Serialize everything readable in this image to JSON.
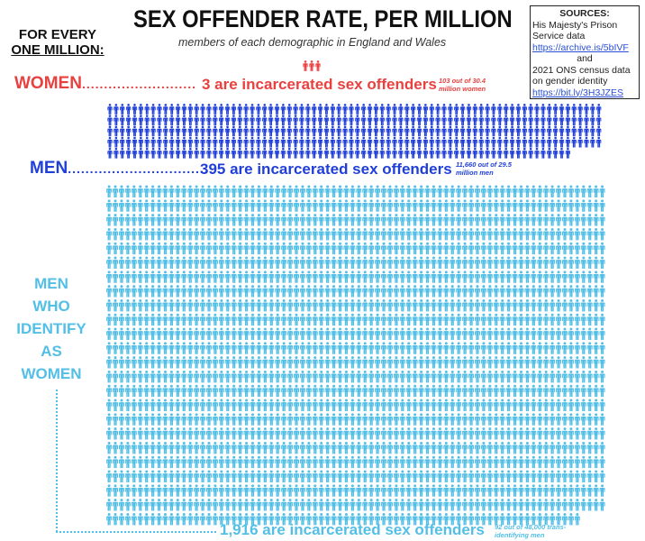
{
  "header": {
    "title": "SEX OFFENDER RATE, PER MILLION",
    "subtitle": "members of each demographic in England and Wales",
    "for_every_line1": "FOR EVERY",
    "for_every_line2": "ONE MILLION:"
  },
  "sources": {
    "heading": "SOURCES:",
    "source1": "His Majesty's Prison Service data",
    "link1": "https://archive.is/5bIVF",
    "and": "and",
    "source2": "2021 ONS census data on gender identity",
    "link2": "https://bit.ly/3H3JZES"
  },
  "chart_data": {
    "type": "pictogram",
    "title": "SEX OFFENDER RATE, PER MILLION",
    "unit": "incarcerated sex offenders per one million",
    "series": [
      {
        "name": "WOMEN",
        "label": "WOMEN",
        "value": 3,
        "statement": "3 are incarcerated sex offenders",
        "note": "103 out of 30.4 million women",
        "color": "#e8413f"
      },
      {
        "name": "MEN",
        "label": "MEN",
        "value": 395,
        "statement": "395 are incarcerated sex offenders",
        "note": "11,660 out of 29.5 million men",
        "color": "#1f3fd8"
      },
      {
        "name": "MEN WHO IDENTIFY AS WOMEN",
        "label_lines": [
          "MEN",
          "WHO",
          "IDENTIFY",
          "AS",
          "WOMEN"
        ],
        "value": 1916,
        "statement": "1,916 are incarcerated sex offenders",
        "note": "92 out of 48,000 trans-identifying men",
        "color": "#53bfe6"
      }
    ]
  }
}
